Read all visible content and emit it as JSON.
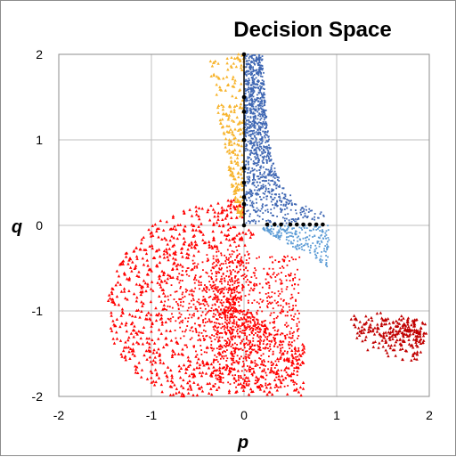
{
  "chart_data": {
    "type": "scatter",
    "title": "Decision Space",
    "xlabel": "p",
    "ylabel": "q",
    "xlim": [
      -2,
      2
    ],
    "ylim": [
      -2,
      2
    ],
    "xticks": [
      "-2",
      "-1",
      "0",
      "1",
      "2"
    ],
    "yticks": [
      "-2",
      "-1",
      "0",
      "1",
      "2"
    ],
    "grid": true,
    "legend": "none",
    "colors": {
      "red": "#ff0000",
      "dark_red": "#c00000",
      "orange": "#f7b32b",
      "dark_blue": "#3f67b3",
      "light_blue": "#5b9bd5",
      "black": "#000000"
    },
    "series": [
      {
        "color": "black",
        "marker": "circle",
        "x": [
          0,
          0,
          0,
          0,
          0,
          0,
          0,
          0,
          0,
          0.25,
          0.33,
          0.4,
          0.5,
          0.57,
          0.64,
          0.71,
          0.78,
          0.85
        ],
        "y": [
          2,
          1.5,
          1.33,
          1,
          0.67,
          0.5,
          0.33,
          0.25,
          0,
          0.01,
          0.01,
          0.01,
          0.01,
          0.01,
          0.01,
          0.01,
          0.01,
          0.01
        ]
      }
    ]
  }
}
